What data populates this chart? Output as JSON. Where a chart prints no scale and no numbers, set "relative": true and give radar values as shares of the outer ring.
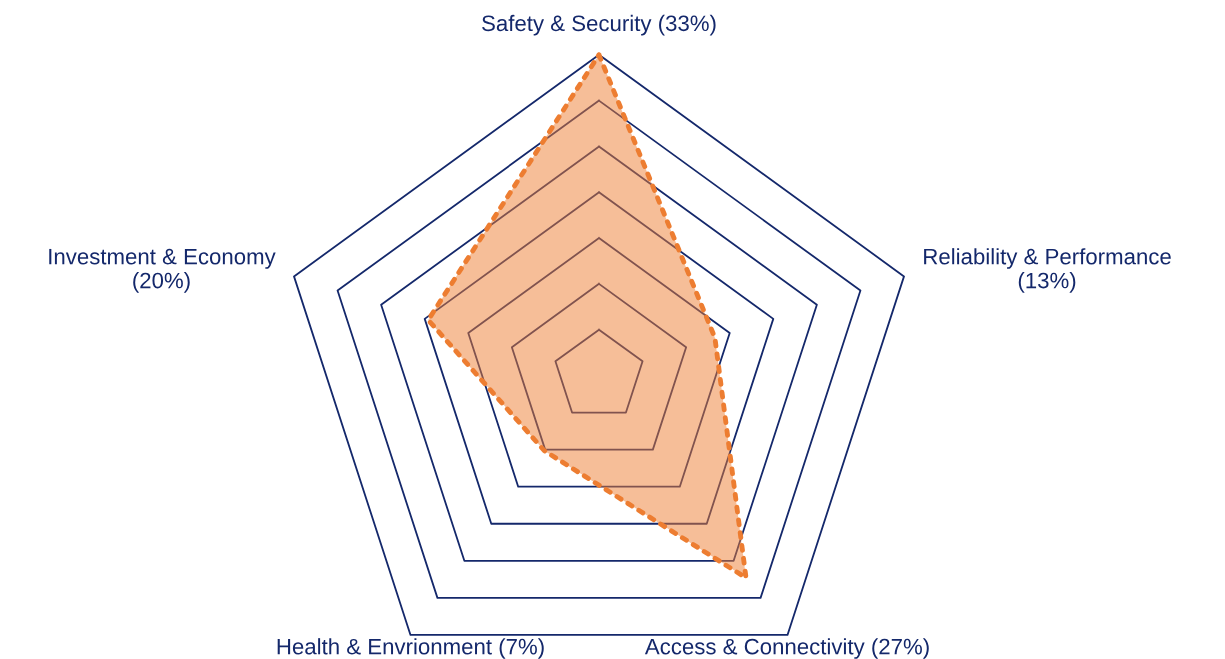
{
  "chart_data": {
    "type": "radar",
    "relative": true,
    "grid": true,
    "marker": "none",
    "line_style": "dotted",
    "categories": [
      "Safety & Security (33%)",
      "Reliability & Performance\n(13%)",
      "Access & Connectivity (27%)",
      "Health & Envrionment (7%)",
      "Investment & Economy\n(20%)"
    ],
    "series": [
      {
        "color": "#ed7d31",
        "values": [
          1.0,
          0.38,
          0.78,
          0.29,
          0.56
        ]
      }
    ]
  }
}
